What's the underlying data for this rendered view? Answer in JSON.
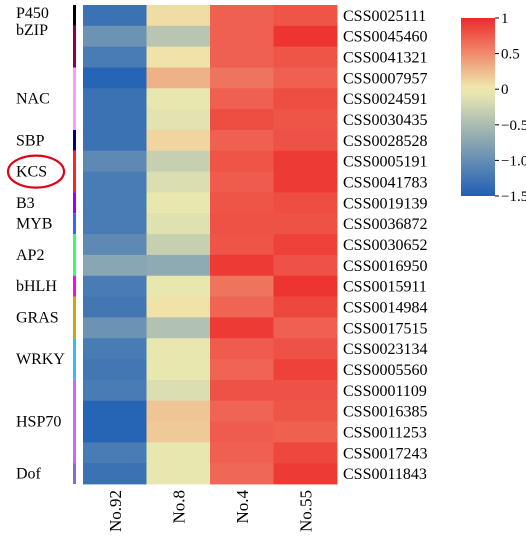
{
  "chart_data": {
    "type": "heatmap",
    "columns": [
      "No.92",
      "No.8",
      "No.4",
      "No.55"
    ],
    "rows": [
      {
        "id": "CSS0025111",
        "values": [
          -1.3,
          0.08,
          0.72,
          0.78
        ]
      },
      {
        "id": "CSS0045460",
        "values": [
          -0.95,
          -0.4,
          0.72,
          0.95
        ]
      },
      {
        "id": "CSS0041321",
        "values": [
          -1.2,
          0.05,
          0.72,
          0.78
        ]
      },
      {
        "id": "CSS0007957",
        "values": [
          -1.45,
          0.3,
          0.62,
          0.72
        ]
      },
      {
        "id": "CSS0024591",
        "values": [
          -1.3,
          -0.05,
          0.72,
          0.82
        ]
      },
      {
        "id": "CSS0030435",
        "values": [
          -1.3,
          -0.1,
          0.82,
          0.78
        ]
      },
      {
        "id": "CSS0028528",
        "values": [
          -1.3,
          0.12,
          0.72,
          0.8
        ]
      },
      {
        "id": "CSS0005191",
        "values": [
          -1.05,
          -0.3,
          0.78,
          0.92
        ]
      },
      {
        "id": "CSS0041783",
        "values": [
          -1.2,
          -0.15,
          0.75,
          0.92
        ]
      },
      {
        "id": "CSS0019139",
        "values": [
          -1.2,
          -0.05,
          0.78,
          0.82
        ]
      },
      {
        "id": "CSS0036872",
        "values": [
          -1.2,
          -0.12,
          0.8,
          0.8
        ]
      },
      {
        "id": "CSS0030652",
        "values": [
          -1.05,
          -0.3,
          0.78,
          0.88
        ]
      },
      {
        "id": "CSS0016950",
        "values": [
          -0.75,
          -0.7,
          0.92,
          0.8
        ]
      },
      {
        "id": "CSS0015911",
        "values": [
          -1.2,
          -0.05,
          0.62,
          0.95
        ]
      },
      {
        "id": "CSS0014984",
        "values": [
          -1.25,
          0.05,
          0.7,
          0.85
        ]
      },
      {
        "id": "CSS0017515",
        "values": [
          -0.95,
          -0.45,
          0.92,
          0.72
        ]
      },
      {
        "id": "CSS0023134",
        "values": [
          -1.2,
          -0.05,
          0.75,
          0.8
        ]
      },
      {
        "id": "CSS0005560",
        "values": [
          -1.25,
          -0.05,
          0.7,
          0.88
        ]
      },
      {
        "id": "CSS0001109",
        "values": [
          -1.2,
          -0.15,
          0.8,
          0.8
        ]
      },
      {
        "id": "CSS0016385",
        "values": [
          -1.45,
          0.2,
          0.7,
          0.78
        ]
      },
      {
        "id": "CSS0011253",
        "values": [
          -1.45,
          0.18,
          0.75,
          0.72
        ]
      },
      {
        "id": "CSS0017243",
        "values": [
          -1.2,
          -0.05,
          0.72,
          0.85
        ]
      },
      {
        "id": "CSS0011843",
        "values": [
          -1.3,
          -0.05,
          0.68,
          0.92
        ]
      }
    ],
    "row_groups": [
      {
        "name": "P450",
        "rows": [
          0,
          0
        ],
        "color": "#000000"
      },
      {
        "name": "bZIP",
        "rows": [
          1,
          2
        ],
        "color": "#8b0040"
      },
      {
        "name": "NAC",
        "rows": [
          3,
          5
        ],
        "color": "#ff99ff"
      },
      {
        "name": "SBP",
        "rows": [
          6,
          6
        ],
        "color": "#000080"
      },
      {
        "name": "KCS",
        "rows": [
          7,
          8
        ],
        "color": "#ff2222",
        "highlighted": true
      },
      {
        "name": "B3",
        "rows": [
          9,
          9
        ],
        "color": "#9900ff"
      },
      {
        "name": "MYB",
        "rows": [
          10,
          10
        ],
        "color": "#3366ff"
      },
      {
        "name": "AP2",
        "rows": [
          11,
          12
        ],
        "color": "#33ff66"
      },
      {
        "name": "bHLH",
        "rows": [
          13,
          13
        ],
        "color": "#ff00ff"
      },
      {
        "name": "GRAS",
        "rows": [
          14,
          15
        ],
        "color": "#ccaa00"
      },
      {
        "name": "WRKY",
        "rows": [
          16,
          17
        ],
        "color": "#33bbff"
      },
      {
        "name": "HSP70",
        "rows": [
          18,
          21
        ],
        "color": "#cc66ff"
      },
      {
        "name": "Dof",
        "rows": [
          22,
          22
        ],
        "color": "#8866dd"
      }
    ],
    "colorbar": {
      "range": [
        -1.5,
        1
      ],
      "ticks": [
        1,
        0.5,
        0,
        -0.5,
        -1,
        -1.5
      ],
      "tick_labels": [
        "1",
        "0.5",
        "0",
        "−0.5",
        "−1.0",
        "−1.5"
      ],
      "colors": {
        "low": "#1f5fb5",
        "mid": "#f0ecb0",
        "high": "#ee2a2a"
      }
    },
    "highlight_color": "#e0001a"
  }
}
